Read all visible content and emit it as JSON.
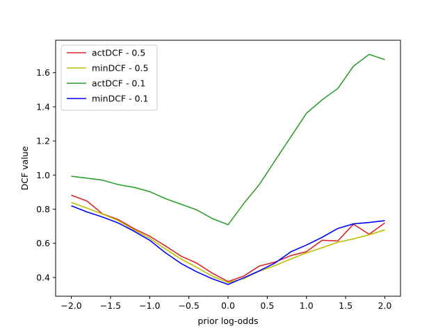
{
  "chart_data": {
    "type": "line",
    "title": "",
    "xlabel": "prior log-odds",
    "ylabel": "DCF value",
    "xlim": [
      -2.2,
      2.2
    ],
    "ylim": [
      0.29,
      1.79
    ],
    "xticks": [
      -2.0,
      -1.5,
      -1.0,
      -0.5,
      0.0,
      0.5,
      1.0,
      1.5,
      2.0
    ],
    "xtick_labels": [
      "−2.0",
      "−1.5",
      "−1.0",
      "−0.5",
      "0.0",
      "0.5",
      "1.0",
      "1.5",
      "2.0"
    ],
    "yticks": [
      0.4,
      0.6,
      0.8,
      1.0,
      1.2,
      1.4,
      1.6
    ],
    "ytick_labels": [
      "0.4",
      "0.6",
      "0.8",
      "1.0",
      "1.2",
      "1.4",
      "1.6"
    ],
    "grid": false,
    "legend_position": "upper-left",
    "x": [
      -2.0,
      -1.8,
      -1.6,
      -1.4,
      -1.2,
      -1.0,
      -0.8,
      -0.6,
      -0.4,
      -0.2,
      0.0,
      0.2,
      0.4,
      0.6,
      0.8,
      1.0,
      1.2,
      1.4,
      1.6,
      1.8,
      2.0
    ],
    "series": [
      {
        "name": "actDCF - 0.5",
        "color": "#d62728",
        "values": [
          0.882,
          0.848,
          0.772,
          0.739,
          0.686,
          0.642,
          0.585,
          0.525,
          0.484,
          0.425,
          0.376,
          0.408,
          0.467,
          0.49,
          0.528,
          0.551,
          0.618,
          0.614,
          0.712,
          0.653,
          0.72
        ]
      },
      {
        "name": "minDCF - 0.5",
        "color": "#bcbd00",
        "values": [
          0.84,
          0.806,
          0.771,
          0.733,
          0.679,
          0.629,
          0.567,
          0.508,
          0.459,
          0.407,
          0.37,
          0.393,
          0.437,
          0.47,
          0.508,
          0.544,
          0.574,
          0.606,
          0.626,
          0.65,
          0.679
        ]
      },
      {
        "name": "actDCF - 0.1",
        "color": "#2ca02c",
        "values": [
          0.993,
          0.982,
          0.97,
          0.944,
          0.928,
          0.903,
          0.862,
          0.829,
          0.796,
          0.745,
          0.709,
          0.833,
          0.945,
          1.085,
          1.223,
          1.362,
          1.441,
          1.507,
          1.638,
          1.707,
          1.676
        ]
      },
      {
        "name": "minDCF - 0.1",
        "color": "#0000ff",
        "values": [
          0.82,
          0.784,
          0.754,
          0.719,
          0.671,
          0.618,
          0.545,
          0.482,
          0.433,
          0.392,
          0.359,
          0.398,
          0.439,
          0.485,
          0.55,
          0.59,
          0.635,
          0.687,
          0.714,
          0.722,
          0.733
        ]
      }
    ]
  }
}
